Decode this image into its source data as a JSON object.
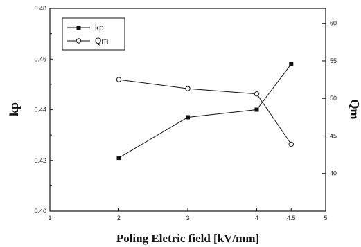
{
  "chart_data": {
    "type": "line",
    "xlabel": "Poling Eletric field [kV/mm]",
    "ylabel_left": "kp",
    "ylabel_right": "Qm",
    "xlim": [
      1,
      5
    ],
    "ylim_left": [
      0.4,
      0.48
    ],
    "ylim_right": [
      35,
      62
    ],
    "xticks": [
      1,
      2,
      3,
      4,
      4.5,
      5
    ],
    "xtick_labels": [
      "1",
      "2",
      "3",
      "4",
      "4.5",
      "5"
    ],
    "yticks_left": [
      0.4,
      0.42,
      0.44,
      0.46,
      0.48
    ],
    "ytick_labels_left": [
      "0.40",
      "0.42",
      "0.44",
      "0.46",
      "0.48"
    ],
    "yticks_right": [
      40,
      45,
      50,
      55,
      60
    ],
    "ytick_labels_right": [
      "40",
      "45",
      "50",
      "55",
      "60"
    ],
    "grid": false,
    "legend_position": "top-left",
    "x": [
      2,
      3,
      4,
      4.5
    ],
    "series": [
      {
        "name": "kp",
        "axis": "left",
        "marker": "filled-square",
        "values": [
          0.421,
          0.437,
          0.44,
          0.458
        ]
      },
      {
        "name": "Qm",
        "axis": "right",
        "marker": "open-circle",
        "values": [
          52.5,
          51.3,
          50.6,
          43.9
        ]
      }
    ]
  }
}
